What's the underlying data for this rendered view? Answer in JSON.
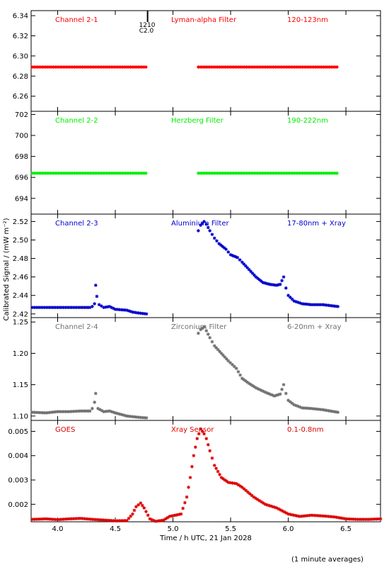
{
  "figure": {
    "ylabel": "Calibrated Signal / (mW m⁻²)",
    "xlabel": "Time / h UTC, 21 Jan 2028",
    "footnote": "(1 minute averages)",
    "top_marker": {
      "label_1": "1210",
      "label_2": "C2.0",
      "x": 4.78
    }
  },
  "x_axis": {
    "range": [
      3.77,
      6.8
    ],
    "ticks": [
      4.0,
      4.5,
      5.0,
      5.5,
      6.0,
      6.5
    ],
    "tick_labels": [
      "4.0",
      "4.5",
      "5.0",
      "5.5",
      "6.0",
      "6.5"
    ]
  },
  "colors": {
    "red": "#ff0000",
    "green": "#00ee00",
    "blue": "#0000cc",
    "gray": "#707070",
    "goes": "#dd0000"
  },
  "chart_data": [
    {
      "type": "scatter",
      "channel": "Channel 2-1",
      "filter": "Lyman-alpha Filter",
      "band": "120-123nm",
      "color": "#ff0000",
      "ylim": [
        6.245,
        6.345
      ],
      "yticks": [
        6.26,
        6.28,
        6.3,
        6.32,
        6.34
      ],
      "ytick_labels": [
        "6.26",
        "6.28",
        "6.30",
        "6.32",
        "6.34"
      ],
      "segments": [
        {
          "x_start": 3.78,
          "x_end": 4.77,
          "y": 6.289
        },
        {
          "x_start": 5.22,
          "x_end": 6.43,
          "y": 6.289
        }
      ]
    },
    {
      "type": "scatter",
      "channel": "Channel 2-2",
      "filter": "Herzberg Filter",
      "band": "190-222nm",
      "color": "#00ee00",
      "ylim": [
        692.5,
        702.3
      ],
      "yticks": [
        694,
        696,
        698,
        700,
        702
      ],
      "ytick_labels": [
        "694",
        "696",
        "698",
        "700",
        "702"
      ],
      "segments": [
        {
          "x_start": 3.78,
          "x_end": 4.77,
          "y": 696.4
        },
        {
          "x_start": 5.22,
          "x_end": 6.43,
          "y": 696.4
        }
      ]
    },
    {
      "type": "scatter",
      "channel": "Channel 2-3",
      "filter": "Aluminium Filter",
      "band": "17-80nm + Xray",
      "color": "#0000cc",
      "ylim": [
        2.416,
        2.528
      ],
      "yticks": [
        2.42,
        2.44,
        2.46,
        2.48,
        2.5,
        2.52
      ],
      "ytick_labels": [
        "2.42",
        "2.44",
        "2.46",
        "2.48",
        "2.50",
        "2.52"
      ],
      "x": [
        3.78,
        3.9,
        4.0,
        4.1,
        4.2,
        4.28,
        4.3,
        4.32,
        4.33,
        4.34,
        4.36,
        4.4,
        4.45,
        4.5,
        4.6,
        4.65,
        4.7,
        4.77,
        5.22,
        5.24,
        5.27,
        5.29,
        5.32,
        5.36,
        5.4,
        5.46,
        5.5,
        5.56,
        5.6,
        5.66,
        5.72,
        5.78,
        5.84,
        5.9,
        5.93,
        5.96,
        5.98,
        6.0,
        6.05,
        6.12,
        6.2,
        6.3,
        6.43
      ],
      "y": [
        2.427,
        2.427,
        2.427,
        2.427,
        2.427,
        2.427,
        2.428,
        2.431,
        2.451,
        2.439,
        2.43,
        2.427,
        2.428,
        2.425,
        2.424,
        2.422,
        2.421,
        2.42,
        2.51,
        2.516,
        2.52,
        2.517,
        2.51,
        2.502,
        2.496,
        2.49,
        2.484,
        2.481,
        2.476,
        2.468,
        2.46,
        2.454,
        2.452,
        2.451,
        2.452,
        2.46,
        2.448,
        2.44,
        2.434,
        2.431,
        2.43,
        2.43,
        2.428
      ]
    },
    {
      "type": "scatter",
      "channel": "Channel 2-4",
      "filter": "Zirconium Filter",
      "band": "6-20nm + Xray",
      "color": "#707070",
      "ylim": [
        1.093,
        1.257
      ],
      "yticks": [
        1.1,
        1.15,
        1.2,
        1.25
      ],
      "ytick_labels": [
        "1.10",
        "1.15",
        "1.20",
        "1.25"
      ],
      "x": [
        3.78,
        3.9,
        4.0,
        4.1,
        4.2,
        4.28,
        4.3,
        4.32,
        4.33,
        4.35,
        4.4,
        4.45,
        4.5,
        4.6,
        4.7,
        4.77,
        5.22,
        5.24,
        5.27,
        5.29,
        5.32,
        5.36,
        5.42,
        5.48,
        5.55,
        5.6,
        5.66,
        5.72,
        5.8,
        5.88,
        5.93,
        5.96,
        5.98,
        6.0,
        6.05,
        6.12,
        6.2,
        6.3,
        6.43
      ],
      "y": [
        1.106,
        1.105,
        1.107,
        1.107,
        1.108,
        1.108,
        1.112,
        1.122,
        1.136,
        1.112,
        1.107,
        1.108,
        1.105,
        1.1,
        1.098,
        1.097,
        1.232,
        1.238,
        1.242,
        1.236,
        1.225,
        1.212,
        1.2,
        1.188,
        1.176,
        1.16,
        1.152,
        1.145,
        1.138,
        1.132,
        1.135,
        1.15,
        1.136,
        1.125,
        1.118,
        1.113,
        1.112,
        1.11,
        1.106
      ]
    },
    {
      "type": "scatter",
      "channel": "GOES",
      "filter": "Xray Sensor",
      "band": "0.1-0.8nm",
      "color": "#dd0000",
      "ylim": [
        0.00128,
        0.00545
      ],
      "yticks": [
        0.002,
        0.003,
        0.004,
        0.005
      ],
      "ytick_labels": [
        "0.002",
        "0.003",
        "0.004",
        "0.005"
      ],
      "x": [
        3.78,
        3.9,
        4.0,
        4.1,
        4.2,
        4.3,
        4.4,
        4.5,
        4.6,
        4.65,
        4.68,
        4.72,
        4.75,
        4.8,
        4.85,
        4.92,
        4.97,
        5.02,
        5.07,
        5.12,
        5.15,
        5.18,
        5.21,
        5.24,
        5.27,
        5.29,
        5.32,
        5.36,
        5.42,
        5.48,
        5.55,
        5.6,
        5.7,
        5.8,
        5.9,
        6.0,
        6.1,
        6.2,
        6.3,
        6.4,
        6.5,
        6.6,
        6.7,
        6.8
      ],
      "y": [
        0.00138,
        0.0014,
        0.00137,
        0.0014,
        0.00142,
        0.00138,
        0.00135,
        0.00132,
        0.00133,
        0.0016,
        0.0019,
        0.00205,
        0.00185,
        0.0014,
        0.0013,
        0.00135,
        0.0015,
        0.00155,
        0.0016,
        0.0023,
        0.0031,
        0.004,
        0.0047,
        0.0051,
        0.0049,
        0.0047,
        0.0042,
        0.0036,
        0.0031,
        0.0029,
        0.00285,
        0.0027,
        0.0023,
        0.002,
        0.00185,
        0.0016,
        0.0015,
        0.00155,
        0.00152,
        0.00148,
        0.0014,
        0.00138,
        0.00138,
        0.0014
      ]
    }
  ]
}
